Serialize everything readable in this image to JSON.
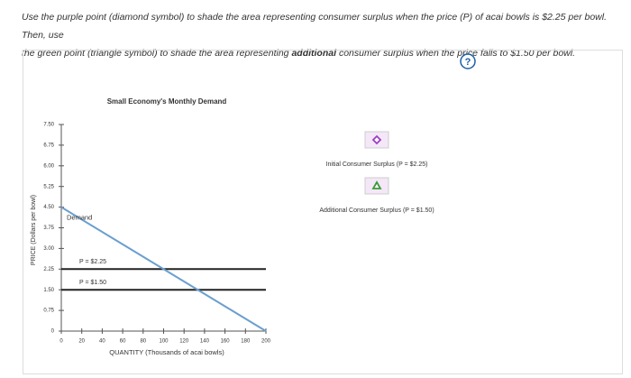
{
  "instructions": [
    {
      "text": "Use the purple point (diamond symbol) to shade the area representing consumer surplus when the price (P) of acai bowls is $2.25 per bowl. Then, use",
      "bold": false
    },
    {
      "text": "the green point (triangle symbol) to shade the area representing ",
      "bold": false
    },
    {
      "text": "additional",
      "bold": true
    },
    {
      "text": " consumer surplus when the price falls to $1.50 per bowl.",
      "bold": false
    }
  ],
  "help": "?",
  "chart_data": {
    "type": "line",
    "title": "Small Economy's Monthly Demand",
    "x_label": "QUANTITY (Thousands of acai bowls)",
    "y_label": "PRICE (Dollars per bowl)",
    "xlim": [
      0,
      200
    ],
    "ylim": [
      0,
      7.5
    ],
    "xticks": [
      0,
      20,
      40,
      60,
      80,
      100,
      120,
      140,
      160,
      180,
      200
    ],
    "yticks": [
      {
        "value": 0,
        "label": "0"
      },
      {
        "value": 0.75,
        "label": "0.75"
      },
      {
        "value": 1.5,
        "label": "1.50"
      },
      {
        "value": 2.25,
        "label": "2.25"
      },
      {
        "value": 3,
        "label": "3.00"
      },
      {
        "value": 3.75,
        "label": "3.75"
      },
      {
        "value": 4.5,
        "label": "4.50"
      },
      {
        "value": 5.25,
        "label": "5.25"
      },
      {
        "value": 6,
        "label": "6.00"
      },
      {
        "value": 6.75,
        "label": "6.75"
      },
      {
        "value": 7.5,
        "label": "7.50"
      }
    ],
    "series": [
      {
        "name": "Demand",
        "color": "#6b9fcf",
        "x": [
          0,
          200
        ],
        "values": [
          4.5,
          0
        ]
      }
    ],
    "price_lines": [
      {
        "label": "P = $2.25",
        "value": 2.25,
        "color": "#222222"
      },
      {
        "label": "P = $1.50",
        "value": 1.5,
        "color": "#222222"
      }
    ]
  },
  "tools": [
    {
      "label": "Initial Consumer Surplus (P = $2.25)",
      "symbol": "diamond",
      "color": "#9b3fc2"
    },
    {
      "label": "Additional Consumer Surplus (P = $1.50)",
      "symbol": "triangle",
      "color": "#3a9a3a"
    }
  ]
}
